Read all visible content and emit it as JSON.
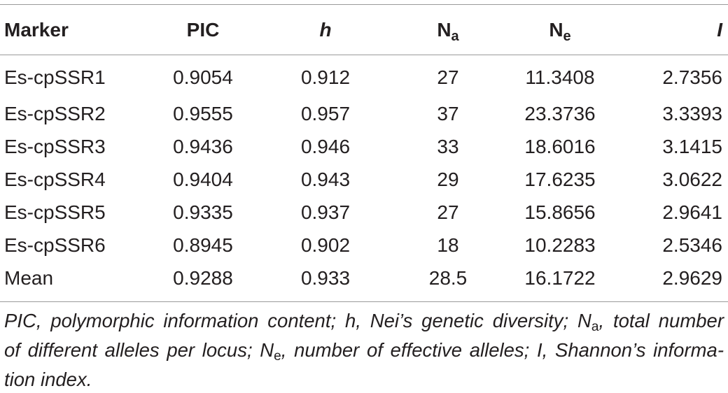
{
  "table": {
    "headers": {
      "marker": "Marker",
      "pic": "PIC",
      "h": "h",
      "na_base": "N",
      "na_sub": "a",
      "ne_base": "N",
      "ne_sub": "e",
      "i": "I"
    },
    "rows": [
      {
        "marker": "Es-cpSSR1",
        "pic": "0.9054",
        "h": "0.912",
        "na": "27",
        "ne": "11.3408",
        "i": "2.7356"
      },
      {
        "marker": "Es-cpSSR2",
        "pic": "0.9555",
        "h": "0.957",
        "na": "37",
        "ne": "23.3736",
        "i": "3.3393"
      },
      {
        "marker": "Es-cpSSR3",
        "pic": "0.9436",
        "h": "0.946",
        "na": "33",
        "ne": "18.6016",
        "i": "3.1415"
      },
      {
        "marker": "Es-cpSSR4",
        "pic": "0.9404",
        "h": "0.943",
        "na": "29",
        "ne": "17.6235",
        "i": "3.0622"
      },
      {
        "marker": "Es-cpSSR5",
        "pic": "0.9335",
        "h": "0.937",
        "na": "27",
        "ne": "15.8656",
        "i": "2.9641"
      },
      {
        "marker": "Es-cpSSR6",
        "pic": "0.8945",
        "h": "0.902",
        "na": "18",
        "ne": "10.2283",
        "i": "2.5346"
      },
      {
        "marker": "Mean",
        "pic": "0.9288",
        "h": "0.933",
        "na": "28.5",
        "ne": "16.1722",
        "i": "2.9629"
      }
    ]
  },
  "footnote": {
    "part1": "PIC, polymorphic information content; h, Nei’s genetic diversity; N",
    "sub_a": "a",
    "part2": ", total number",
    "part3": "of different alleles per locus; N",
    "sub_e": "e",
    "part4": ", number of effective alleles; I, Shannon’s informa-",
    "part5": "tion index."
  }
}
